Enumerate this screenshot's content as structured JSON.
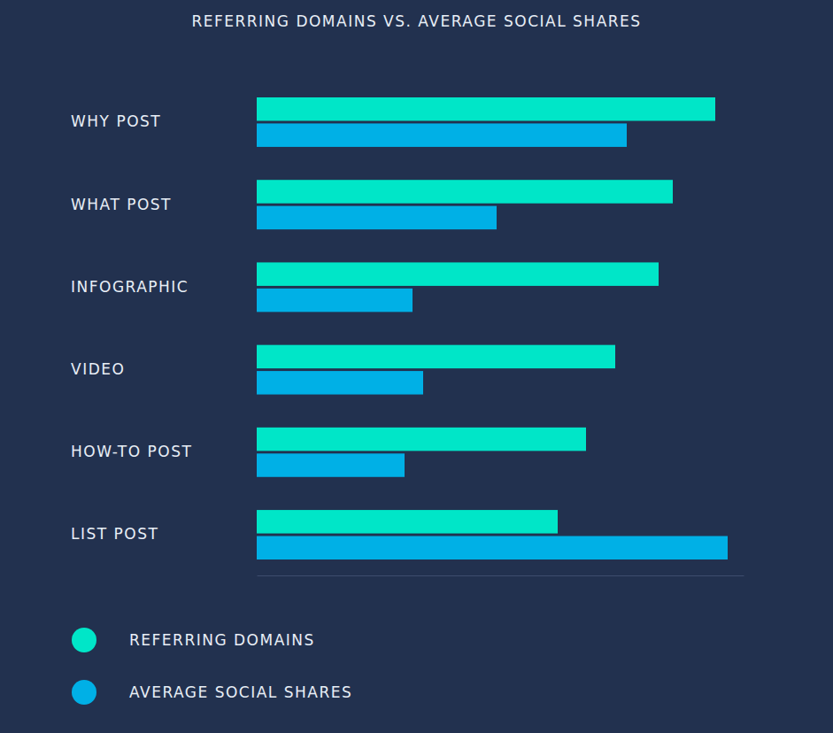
{
  "chart_data": {
    "type": "bar",
    "title": "REFERRING DOMAINS VS. AVERAGE SOCIAL SHARES",
    "orientation": "horizontal",
    "categories": [
      "WHY POST",
      "WHAT POST",
      "INFOGRAPHIC",
      "VIDEO",
      "HOW-TO POST",
      "LIST POST"
    ],
    "series": [
      {
        "name": "REFERRING DOMAINS",
        "color": "#00e6c8",
        "values": [
          518,
          470,
          454,
          405,
          372,
          340
        ]
      },
      {
        "name": "AVERAGE SOCIAL SHARES",
        "color": "#00b0e6",
        "values": [
          418,
          271,
          176,
          188,
          167,
          532
        ]
      }
    ],
    "xlim": [
      0,
      550
    ],
    "tick_labels": false,
    "grid": false,
    "legend": "bottom-left"
  }
}
